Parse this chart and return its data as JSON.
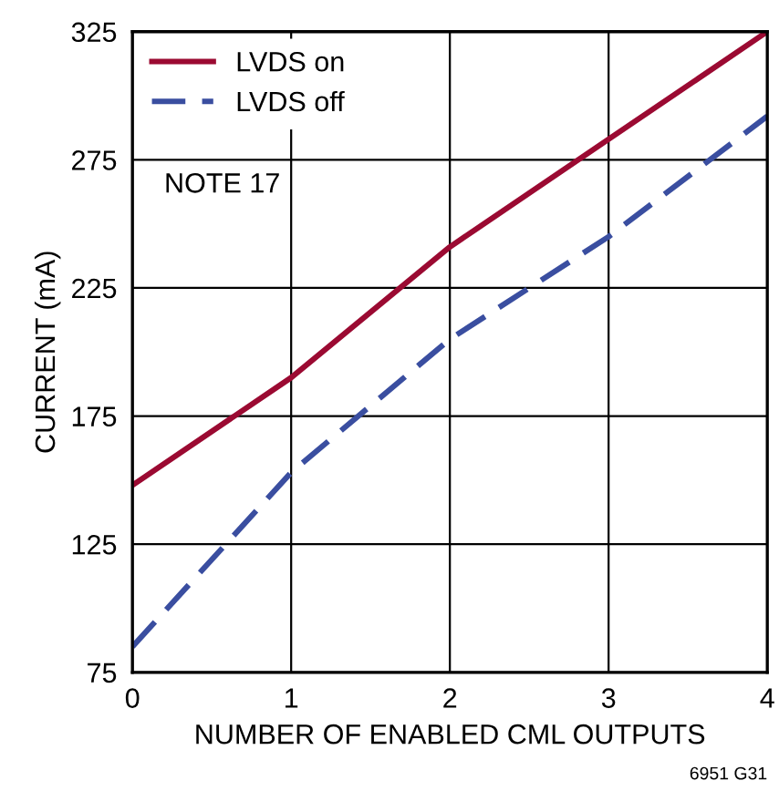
{
  "chart_data": {
    "type": "line",
    "xlabel": "NUMBER OF ENABLED CML OUTPUTS",
    "ylabel": "CURRENT (mA)",
    "x": [
      0,
      1,
      2,
      3,
      4
    ],
    "series": [
      {
        "name": "LVDS on",
        "color": "#9b0a32",
        "values": [
          148,
          190,
          241,
          283,
          325
        ],
        "line_style": "solid"
      },
      {
        "name": "LVDS off",
        "color": "#3a4ea0",
        "values": [
          85,
          153,
          205,
          245,
          292
        ],
        "line_style": "dashed"
      }
    ],
    "xlim": [
      0,
      4
    ],
    "xticks": [
      0,
      1,
      2,
      3,
      4
    ],
    "ylim": [
      75,
      325
    ],
    "yticks": [
      75,
      125,
      175,
      225,
      275,
      325
    ],
    "grid": true,
    "legend": "top left",
    "marker": "none",
    "annotations": [
      "NOTE 17",
      "6951 G31"
    ]
  }
}
